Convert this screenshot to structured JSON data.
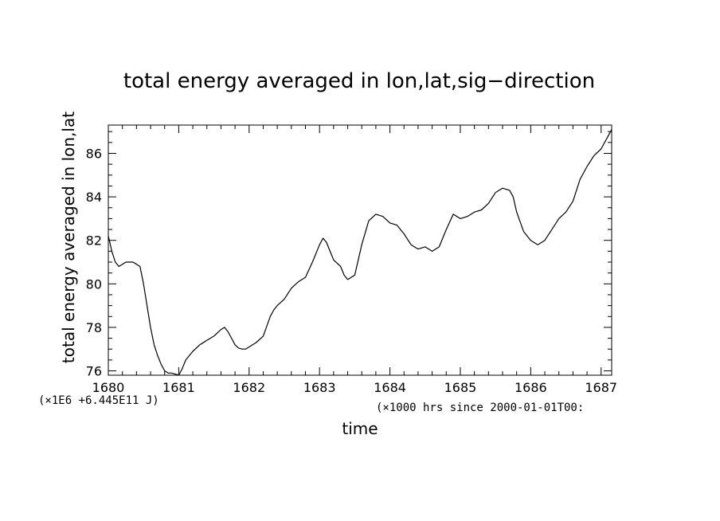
{
  "chart_data": {
    "type": "line",
    "title": "total energy averaged in lon,lat,sig−direction",
    "xlabel": "time",
    "ylabel": "total energy averaged in lon,lat",
    "x_units_note": "(×1000 hrs  since 2000-01-01T00:",
    "y_units_note": "(×1E6 +6.445E11 J)",
    "xlim": [
      1680.0,
      1687.15
    ],
    "ylim": [
      75.8,
      87.3
    ],
    "x_ticks": [
      "1680",
      "1681",
      "1682",
      "1683",
      "1684",
      "1685",
      "1686",
      "1687"
    ],
    "y_ticks": [
      "76",
      "78",
      "80",
      "82",
      "84",
      "86"
    ],
    "grid": false,
    "colors": {
      "line": "#000000",
      "axes": "#000000",
      "background": "#ffffff"
    },
    "series": [
      {
        "name": "total energy",
        "x": [
          1680.0,
          1680.05,
          1680.1,
          1680.15,
          1680.2,
          1680.25,
          1680.3,
          1680.35,
          1680.4,
          1680.45,
          1680.5,
          1680.55,
          1680.6,
          1680.65,
          1680.7,
          1680.75,
          1680.8,
          1680.85,
          1680.9,
          1680.95,
          1681.0,
          1681.05,
          1681.1,
          1681.15,
          1681.2,
          1681.3,
          1681.4,
          1681.5,
          1681.6,
          1681.65,
          1681.7,
          1681.75,
          1681.8,
          1681.85,
          1681.9,
          1681.95,
          1682.0,
          1682.1,
          1682.2,
          1682.3,
          1682.35,
          1682.4,
          1682.5,
          1682.6,
          1682.7,
          1682.8,
          1682.9,
          1683.0,
          1683.05,
          1683.1,
          1683.15,
          1683.2,
          1683.3,
          1683.35,
          1683.4,
          1683.5,
          1683.6,
          1683.7,
          1683.8,
          1683.9,
          1684.0,
          1684.1,
          1684.2,
          1684.3,
          1684.4,
          1684.5,
          1684.6,
          1684.7,
          1684.8,
          1684.9,
          1685.0,
          1685.1,
          1685.2,
          1685.3,
          1685.4,
          1685.5,
          1685.6,
          1685.7,
          1685.75,
          1685.8,
          1685.9,
          1686.0,
          1686.1,
          1686.2,
          1686.3,
          1686.4,
          1686.5,
          1686.6,
          1686.7,
          1686.8,
          1686.9,
          1687.0,
          1687.1,
          1687.15
        ],
        "y": [
          82.2,
          81.5,
          81.0,
          80.8,
          80.9,
          81.0,
          81.0,
          81.0,
          80.9,
          80.8,
          80.0,
          79.0,
          78.0,
          77.2,
          76.7,
          76.3,
          76.0,
          75.9,
          75.9,
          75.85,
          75.8,
          76.1,
          76.5,
          76.7,
          76.9,
          77.2,
          77.4,
          77.6,
          77.9,
          78.0,
          77.8,
          77.5,
          77.2,
          77.05,
          77.0,
          77.0,
          77.1,
          77.3,
          77.6,
          78.5,
          78.8,
          79.0,
          79.3,
          79.8,
          80.1,
          80.3,
          81.0,
          81.8,
          82.1,
          81.9,
          81.5,
          81.1,
          80.8,
          80.4,
          80.2,
          80.4,
          81.8,
          82.9,
          83.2,
          83.1,
          82.8,
          82.7,
          82.3,
          81.8,
          81.6,
          81.7,
          81.5,
          81.7,
          82.5,
          83.2,
          83.0,
          83.1,
          83.3,
          83.4,
          83.7,
          84.2,
          84.4,
          84.3,
          84.0,
          83.3,
          82.4,
          82.0,
          81.8,
          82.0,
          82.5,
          83.0,
          83.3,
          83.8,
          84.8,
          85.4,
          85.9,
          86.2,
          86.8,
          87.1
        ]
      }
    ]
  }
}
